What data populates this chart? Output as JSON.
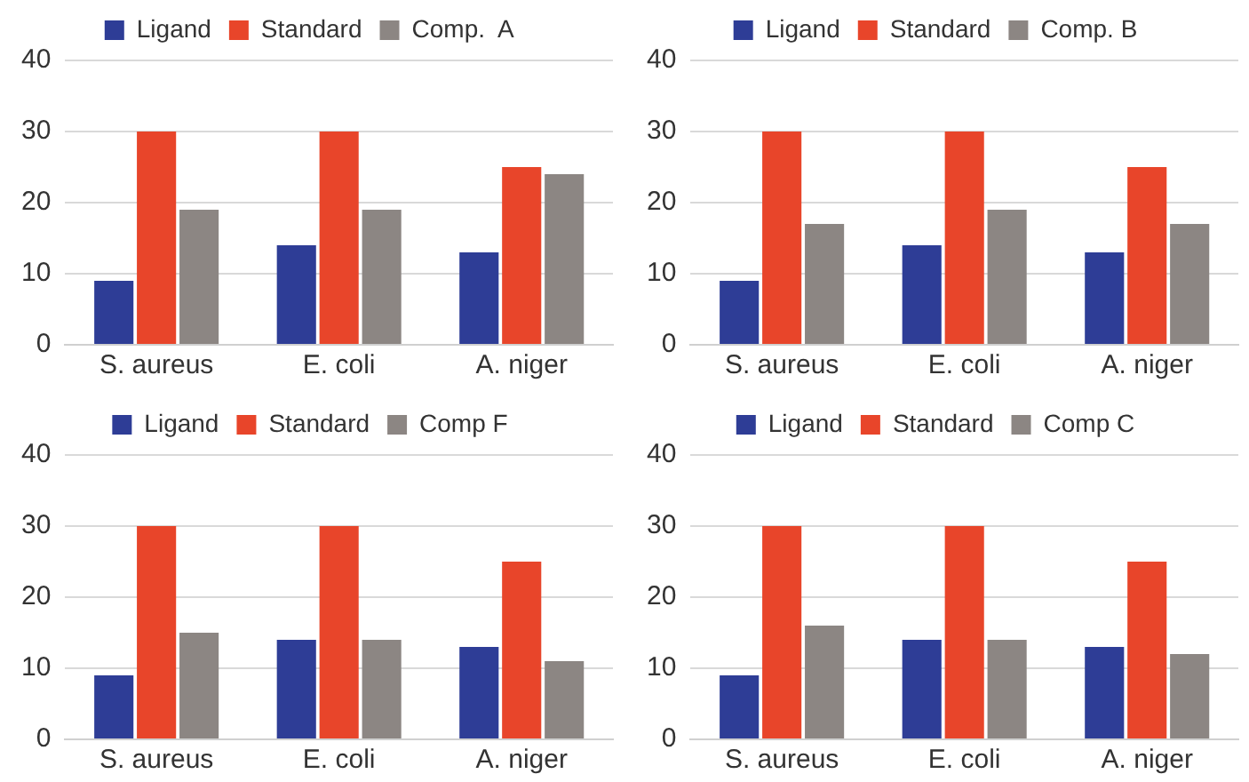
{
  "chart_data": [
    {
      "type": "bar",
      "categories": [
        "S. aureus",
        "E. coli",
        "A. niger"
      ],
      "series": [
        {
          "name": "Ligand",
          "color": "#2e3d96",
          "values": [
            9,
            14,
            13
          ]
        },
        {
          "name": "Standard",
          "color": "#e8452a",
          "values": [
            30,
            30,
            25
          ]
        },
        {
          "name": "Comp.  A",
          "color": "#8c8683",
          "values": [
            19,
            19,
            24
          ]
        }
      ],
      "ylim": [
        0,
        40
      ],
      "yticks": [
        0,
        10,
        20,
        30,
        40
      ],
      "grid": "y",
      "legend": "top"
    },
    {
      "type": "bar",
      "categories": [
        "S. aureus",
        "E. coli",
        "A. niger"
      ],
      "series": [
        {
          "name": "Ligand",
          "color": "#2e3d96",
          "values": [
            9,
            14,
            13
          ]
        },
        {
          "name": "Standard",
          "color": "#e8452a",
          "values": [
            30,
            30,
            25
          ]
        },
        {
          "name": "Comp. B",
          "color": "#8c8683",
          "values": [
            17,
            19,
            17
          ]
        }
      ],
      "ylim": [
        0,
        40
      ],
      "yticks": [
        0,
        10,
        20,
        30,
        40
      ],
      "grid": "y",
      "legend": "top"
    },
    {
      "type": "bar",
      "categories": [
        "S. aureus",
        "E. coli",
        "A. niger"
      ],
      "series": [
        {
          "name": "Ligand",
          "color": "#2e3d96",
          "values": [
            9,
            14,
            13
          ]
        },
        {
          "name": "Standard",
          "color": "#e8452a",
          "values": [
            30,
            30,
            25
          ]
        },
        {
          "name": "Comp F",
          "color": "#8c8683",
          "values": [
            15,
            14,
            11
          ]
        }
      ],
      "ylim": [
        0,
        40
      ],
      "yticks": [
        0,
        10,
        20,
        30,
        40
      ],
      "grid": "y",
      "legend": "top"
    },
    {
      "type": "bar",
      "categories": [
        "S. aureus",
        "E. coli",
        "A. niger"
      ],
      "series": [
        {
          "name": "Ligand",
          "color": "#2e3d96",
          "values": [
            9,
            14,
            13
          ]
        },
        {
          "name": "Standard",
          "color": "#e8452a",
          "values": [
            30,
            30,
            25
          ]
        },
        {
          "name": "Comp C",
          "color": "#8c8683",
          "values": [
            16,
            14,
            12
          ]
        }
      ],
      "ylim": [
        0,
        40
      ],
      "yticks": [
        0,
        10,
        20,
        30,
        40
      ],
      "grid": "y",
      "legend": "top"
    }
  ]
}
